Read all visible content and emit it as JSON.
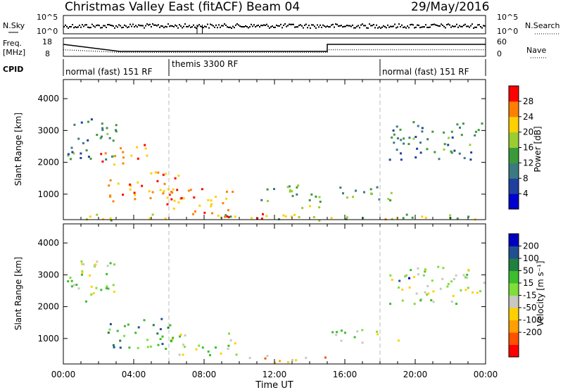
{
  "header": {
    "title": "Christmas Valley East (fitACF)",
    "beam": "Beam 04",
    "date": "29/May/2016"
  },
  "nsky_panel": {
    "left_label": "N.Sky",
    "right_label": "N.Search",
    "left_ticks": [
      "10^5",
      "10^0"
    ],
    "right_ticks": [
      "10^5",
      "10^0"
    ]
  },
  "freq_panel": {
    "left_label_1": "Freq.",
    "left_label_2": "[MHz]",
    "right_label": "Nave",
    "left_ticks": [
      "18",
      "8"
    ],
    "right_ticks": [
      "60",
      "0"
    ],
    "freq_steps": [
      [
        0,
        15
      ],
      [
        3.2,
        10
      ],
      [
        15,
        10
      ],
      [
        15,
        15
      ],
      [
        24,
        15
      ]
    ],
    "nave_steps": [
      [
        0,
        20
      ],
      [
        3.2,
        10
      ],
      [
        15,
        10
      ],
      [
        15,
        20
      ],
      [
        24,
        20
      ]
    ]
  },
  "cpid": {
    "label": "CPID",
    "segments": [
      {
        "start": 0,
        "end": 6,
        "text": "normal (fast) 151 RF"
      },
      {
        "start": 6,
        "end": 18,
        "text": "themis 3300 RF"
      },
      {
        "start": 18,
        "end": 24,
        "text": "normal (fast) 151 RF"
      }
    ]
  },
  "chart_data": [
    {
      "type": "heatmap",
      "quantity": "Power",
      "xlabel": "Time UT",
      "ylabel": "Slant Range [km]",
      "xlim": [
        0,
        24
      ],
      "ylim": [
        200,
        4600
      ],
      "x_ticks": [
        "00:00",
        "04:00",
        "08:00",
        "12:00",
        "16:00",
        "20:00",
        "00:00"
      ],
      "y_ticks": [
        "1000",
        "2000",
        "3000",
        "4000"
      ],
      "colorbar": {
        "label": "Power [dB]",
        "ticks": [
          "4",
          "8",
          "12",
          "16",
          "20",
          "24",
          "28"
        ],
        "colors": [
          "#0000d0",
          "#2040a0",
          "#3a7a80",
          "#3a9a3a",
          "#9acd32",
          "#ffd000",
          "#ff8000",
          "#ff0000"
        ]
      },
      "regions": [
        {
          "t0": 0.2,
          "t1": 3.0,
          "r0": 2100,
          "r1": 3500,
          "level": 0.35
        },
        {
          "t0": 2.0,
          "t1": 4.8,
          "r0": 1900,
          "r1": 2600,
          "level": 0.75
        },
        {
          "t0": 2.5,
          "t1": 6.5,
          "r0": 700,
          "r1": 1500,
          "level": 0.85
        },
        {
          "t0": 4.5,
          "t1": 6.5,
          "r0": 1000,
          "r1": 1800,
          "level": 0.8
        },
        {
          "t0": 6.2,
          "t1": 9.6,
          "r0": 300,
          "r1": 1200,
          "level": 0.75
        },
        {
          "t0": 8.0,
          "t1": 11.5,
          "r0": 250,
          "r1": 450,
          "level": 0.9
        },
        {
          "t0": 11.0,
          "t1": 13.5,
          "r0": 800,
          "r1": 1400,
          "level": 0.4
        },
        {
          "t0": 13.5,
          "t1": 15.5,
          "r0": 600,
          "r1": 1100,
          "level": 0.55
        },
        {
          "t0": 15.5,
          "t1": 18.8,
          "r0": 800,
          "r1": 1300,
          "level": 0.5
        },
        {
          "t0": 18.5,
          "t1": 23.9,
          "r0": 2100,
          "r1": 3300,
          "level": 0.35
        },
        {
          "t0": 0.0,
          "t1": 24.0,
          "r0": 200,
          "r1": 400,
          "level": 0.6
        }
      ]
    },
    {
      "type": "heatmap",
      "quantity": "Velocity",
      "xlabel": "Time UT",
      "ylabel": "Slant Range [km]",
      "xlim": [
        0,
        24
      ],
      "ylim": [
        200,
        4600
      ],
      "x_ticks": [
        "00:00",
        "04:00",
        "08:00",
        "12:00",
        "16:00",
        "20:00",
        "00:00"
      ],
      "y_ticks": [
        "1000",
        "2000",
        "3000",
        "4000"
      ],
      "colorbar": {
        "label": "Velocity [m s⁻¹]",
        "ticks": [
          "200",
          "100",
          "50",
          "15",
          "-15",
          "-50",
          "-100",
          "-200"
        ],
        "colors": [
          "#0000c0",
          "#205090",
          "#208040",
          "#3cbd2e",
          "#7ede3a",
          "#c8c8c0",
          "#ffd000",
          "#ffa000",
          "#ff5000",
          "#ff0000"
        ]
      },
      "regions": [
        {
          "t0": 0.2,
          "t1": 3.0,
          "r0": 2100,
          "r1": 3500,
          "level": 0.5
        },
        {
          "t0": 2.5,
          "t1": 6.2,
          "r0": 700,
          "r1": 1700,
          "level": 0.3
        },
        {
          "t0": 6.0,
          "t1": 10.0,
          "r0": 500,
          "r1": 1200,
          "level": 0.5
        },
        {
          "t0": 10.0,
          "t1": 15.0,
          "r0": 250,
          "r1": 500,
          "level": 0.65
        },
        {
          "t0": 15.0,
          "t1": 19.0,
          "r0": 900,
          "r1": 1300,
          "level": 0.5
        },
        {
          "t0": 18.5,
          "t1": 23.9,
          "r0": 2100,
          "r1": 3300,
          "level": 0.5
        },
        {
          "t0": 19.0,
          "t1": 19.8,
          "r0": 2800,
          "r1": 3100,
          "level": 0.05
        }
      ]
    }
  ]
}
